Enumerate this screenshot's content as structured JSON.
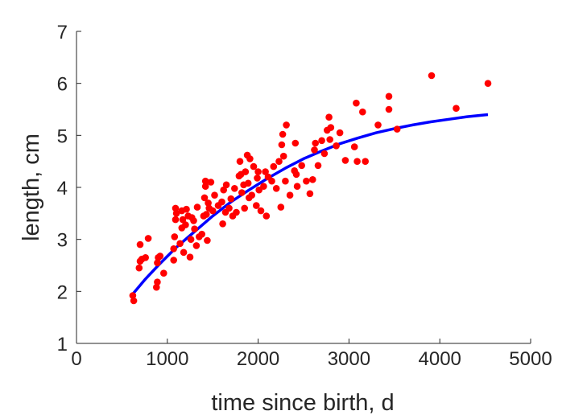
{
  "chart_data": {
    "type": "scatter",
    "title": "",
    "xlabel": "time since birth, d",
    "ylabel": "length, cm",
    "xlim": [
      0,
      5000
    ],
    "ylim": [
      1,
      7
    ],
    "xticks": [
      "0",
      "1000",
      "2000",
      "3000",
      "4000",
      "5000"
    ],
    "yticks": [
      "1",
      "2",
      "3",
      "4",
      "5",
      "6",
      "7"
    ],
    "grid": false,
    "legend": "none",
    "colors": {
      "points": "#ff0000",
      "fit": "#0000ff",
      "axis": "#262626"
    },
    "series": [
      {
        "kind": "points",
        "points": [
          [
            620,
            1.92
          ],
          [
            630,
            1.82
          ],
          [
            690,
            2.45
          ],
          [
            700,
            2.58
          ],
          [
            700,
            2.9
          ],
          [
            720,
            2.62
          ],
          [
            760,
            2.65
          ],
          [
            790,
            3.02
          ],
          [
            880,
            2.08
          ],
          [
            890,
            2.18
          ],
          [
            890,
            2.55
          ],
          [
            900,
            2.65
          ],
          [
            920,
            2.68
          ],
          [
            960,
            2.35
          ],
          [
            1070,
            2.6
          ],
          [
            1070,
            2.82
          ],
          [
            1080,
            3.05
          ],
          [
            1090,
            3.38
          ],
          [
            1090,
            3.6
          ],
          [
            1100,
            3.5
          ],
          [
            1140,
            2.92
          ],
          [
            1160,
            3.22
          ],
          [
            1160,
            3.55
          ],
          [
            1170,
            3.38
          ],
          [
            1180,
            2.75
          ],
          [
            1200,
            3.28
          ],
          [
            1210,
            3.58
          ],
          [
            1230,
            3.45
          ],
          [
            1250,
            2.66
          ],
          [
            1260,
            3.0
          ],
          [
            1270,
            3.42
          ],
          [
            1290,
            3.36
          ],
          [
            1300,
            3.2
          ],
          [
            1320,
            2.88
          ],
          [
            1330,
            3.62
          ],
          [
            1350,
            3.05
          ],
          [
            1380,
            3.1
          ],
          [
            1400,
            3.45
          ],
          [
            1410,
            3.8
          ],
          [
            1420,
            4.12
          ],
          [
            1420,
            4.02
          ],
          [
            1430,
            3.48
          ],
          [
            1440,
            2.98
          ],
          [
            1450,
            3.7
          ],
          [
            1460,
            3.6
          ],
          [
            1480,
            4.1
          ],
          [
            1500,
            3.55
          ],
          [
            1520,
            3.85
          ],
          [
            1560,
            3.65
          ],
          [
            1600,
            3.72
          ],
          [
            1610,
            3.3
          ],
          [
            1620,
            3.95
          ],
          [
            1640,
            3.52
          ],
          [
            1650,
            4.05
          ],
          [
            1680,
            3.6
          ],
          [
            1700,
            3.78
          ],
          [
            1720,
            3.45
          ],
          [
            1740,
            3.98
          ],
          [
            1760,
            3.52
          ],
          [
            1790,
            4.22
          ],
          [
            1800,
            4.5
          ],
          [
            1810,
            4.25
          ],
          [
            1820,
            3.9
          ],
          [
            1840,
            4.05
          ],
          [
            1850,
            3.6
          ],
          [
            1860,
            4.3
          ],
          [
            1880,
            4.62
          ],
          [
            1890,
            4.08
          ],
          [
            1900,
            3.8
          ],
          [
            1910,
            4.55
          ],
          [
            1930,
            3.85
          ],
          [
            1950,
            4.4
          ],
          [
            1980,
            3.65
          ],
          [
            1990,
            4.18
          ],
          [
            2000,
            4.3
          ],
          [
            2010,
            3.95
          ],
          [
            2030,
            3.55
          ],
          [
            2060,
            4.02
          ],
          [
            2080,
            4.3
          ],
          [
            2090,
            3.45
          ],
          [
            2110,
            4.2
          ],
          [
            2150,
            4.12
          ],
          [
            2170,
            4.4
          ],
          [
            2200,
            3.98
          ],
          [
            2230,
            4.5
          ],
          [
            2250,
            3.62
          ],
          [
            2260,
            4.82
          ],
          [
            2270,
            5.02
          ],
          [
            2280,
            4.6
          ],
          [
            2300,
            4.12
          ],
          [
            2310,
            5.2
          ],
          [
            2350,
            3.85
          ],
          [
            2400,
            4.32
          ],
          [
            2410,
            4.85
          ],
          [
            2420,
            4.25
          ],
          [
            2430,
            4.02
          ],
          [
            2480,
            4.42
          ],
          [
            2530,
            4.12
          ],
          [
            2570,
            3.88
          ],
          [
            2600,
            4.15
          ],
          [
            2620,
            4.72
          ],
          [
            2630,
            4.85
          ],
          [
            2660,
            4.42
          ],
          [
            2700,
            4.9
          ],
          [
            2730,
            4.65
          ],
          [
            2760,
            5.1
          ],
          [
            2780,
            5.35
          ],
          [
            2790,
            4.92
          ],
          [
            2800,
            5.15
          ],
          [
            2860,
            4.8
          ],
          [
            2900,
            5.05
          ],
          [
            2960,
            4.52
          ],
          [
            3060,
            4.78
          ],
          [
            3080,
            5.62
          ],
          [
            3090,
            4.5
          ],
          [
            3150,
            5.45
          ],
          [
            3180,
            4.5
          ],
          [
            3320,
            5.2
          ],
          [
            3440,
            5.75
          ],
          [
            3440,
            5.5
          ],
          [
            3530,
            5.12
          ],
          [
            3910,
            6.15
          ],
          [
            4180,
            5.52
          ],
          [
            4530,
            6.0
          ]
        ]
      },
      {
        "kind": "fit",
        "curve": [
          [
            620,
            1.95
          ],
          [
            750,
            2.22
          ],
          [
            900,
            2.5
          ],
          [
            1100,
            2.85
          ],
          [
            1300,
            3.15
          ],
          [
            1500,
            3.45
          ],
          [
            1700,
            3.72
          ],
          [
            1900,
            3.95
          ],
          [
            2100,
            4.17
          ],
          [
            2300,
            4.37
          ],
          [
            2500,
            4.55
          ],
          [
            2700,
            4.7
          ],
          [
            2900,
            4.84
          ],
          [
            3100,
            4.95
          ],
          [
            3300,
            5.05
          ],
          [
            3500,
            5.13
          ],
          [
            3700,
            5.2
          ],
          [
            3900,
            5.26
          ],
          [
            4100,
            5.31
          ],
          [
            4300,
            5.36
          ],
          [
            4530,
            5.4
          ]
        ]
      }
    ]
  }
}
